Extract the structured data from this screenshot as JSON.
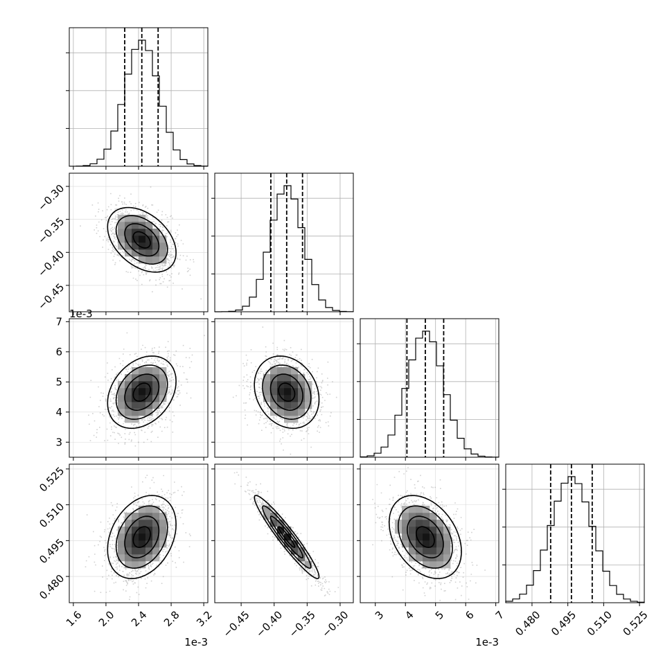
{
  "chart_data": {
    "type": "corner",
    "params": [
      {
        "mean": 0.00244,
        "sd": 0.00021,
        "range": [
          0.00155,
          0.00325
        ],
        "quantiles": [
          0.00223,
          0.00244,
          0.00264
        ],
        "ticks": [
          0.0016,
          0.002,
          0.0024,
          0.0028,
          0.0032
        ],
        "tick_labels": [
          "1.6",
          "2.0",
          "2.4",
          "2.8",
          "3.2"
        ],
        "offset": "1e-3"
      },
      {
        "mean": -0.381,
        "sd": 0.0245,
        "range": [
          -0.49,
          -0.28
        ],
        "quantiles": [
          -0.405,
          -0.381,
          -0.357
        ],
        "ticks": [
          -0.45,
          -0.4,
          -0.35,
          -0.3
        ],
        "tick_labels": [
          "−0.45",
          "−0.40",
          "−0.35",
          "−0.30"
        ],
        "offset": ""
      },
      {
        "mean": 0.00466,
        "sd": 0.0006,
        "range": [
          0.0025,
          0.0071
        ],
        "quantiles": [
          0.00405,
          0.00466,
          0.00527
        ],
        "ticks": [
          0.003,
          0.004,
          0.005,
          0.006,
          0.007
        ],
        "tick_labels": [
          "3",
          "4",
          "5",
          "6",
          "7"
        ],
        "offset": "1e-3"
      },
      {
        "mean": 0.4965,
        "sd": 0.0087,
        "range": [
          0.469,
          0.527
        ],
        "quantiles": [
          0.4878,
          0.4965,
          0.5052
        ],
        "ticks": [
          0.48,
          0.495,
          0.51,
          0.525
        ],
        "tick_labels": [
          "0.480",
          "0.495",
          "0.510",
          "0.525"
        ],
        "offset": ""
      }
    ],
    "correlations": [
      {
        "i": 0,
        "j": 1,
        "r": -0.4
      },
      {
        "i": 0,
        "j": 2,
        "r": 0.3
      },
      {
        "i": 1,
        "j": 2,
        "r": -0.2
      },
      {
        "i": 0,
        "j": 3,
        "r": 0.3
      },
      {
        "i": 1,
        "j": 3,
        "r": -0.95
      },
      {
        "i": 2,
        "j": 3,
        "r": -0.35
      }
    ],
    "grid": true,
    "contour_levels_sigma": [
      0.5,
      1.0,
      1.5,
      2.0
    ]
  }
}
